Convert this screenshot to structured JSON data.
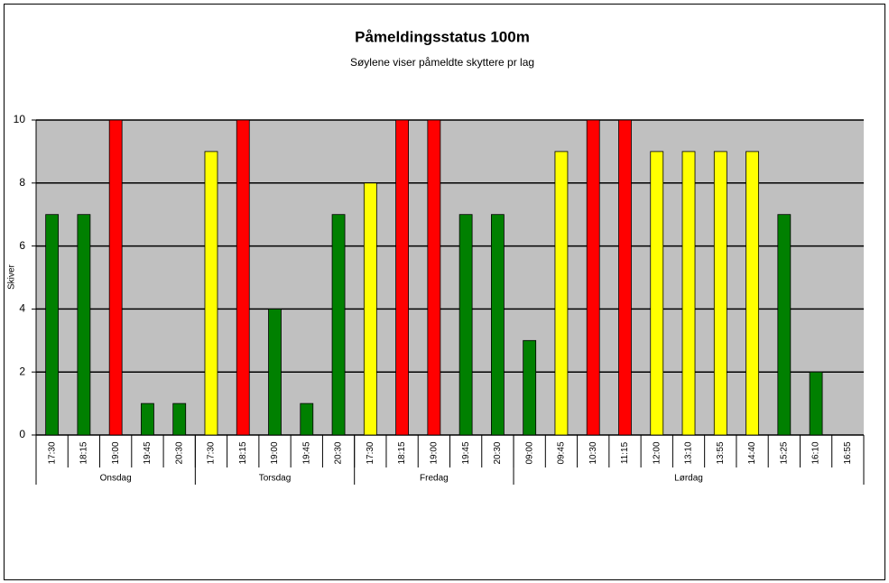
{
  "chart_data": {
    "type": "bar",
    "title": "Påmeldingsstatus 100m",
    "subtitle": "Søylene viser påmeldte skyttere pr lag",
    "y_label": "Skiver",
    "categories": [
      "17:30",
      "18:15",
      "19:00",
      "19:45",
      "20:30",
      "17:30",
      "18:15",
      "19:00",
      "19:45",
      "20:30",
      "17:30",
      "18:15",
      "19:00",
      "19:45",
      "20:30",
      "09:00",
      "09:45",
      "10:30",
      "11:15",
      "12:00",
      "13:10",
      "13:55",
      "14:40",
      "15:25",
      "16:10",
      "16:55"
    ],
    "values": [
      7,
      7,
      10,
      1,
      1,
      9,
      10,
      4,
      1,
      7,
      8,
      10,
      10,
      7,
      7,
      3,
      9,
      10,
      10,
      9,
      9,
      9,
      9,
      7,
      2,
      0
    ],
    "colors": [
      "#008000",
      "#008000",
      "#ff0000",
      "#008000",
      "#008000",
      "#ffff00",
      "#ff0000",
      "#008000",
      "#008000",
      "#008000",
      "#ffff00",
      "#ff0000",
      "#ff0000",
      "#008000",
      "#008000",
      "#008000",
      "#ffff00",
      "#ff0000",
      "#ff0000",
      "#ffff00",
      "#ffff00",
      "#ffff00",
      "#ffff00",
      "#008000",
      "#008000",
      "#008000"
    ],
    "groups": [
      {
        "name": "Onsdag",
        "size": 5
      },
      {
        "name": "Torsdag",
        "size": 5
      },
      {
        "name": "Fredag",
        "size": 5
      },
      {
        "name": "Lørdag",
        "size": 11
      }
    ],
    "ylim": [
      0,
      10
    ],
    "yticks": [
      0,
      2,
      4,
      6,
      8,
      10
    ],
    "grid": true
  }
}
